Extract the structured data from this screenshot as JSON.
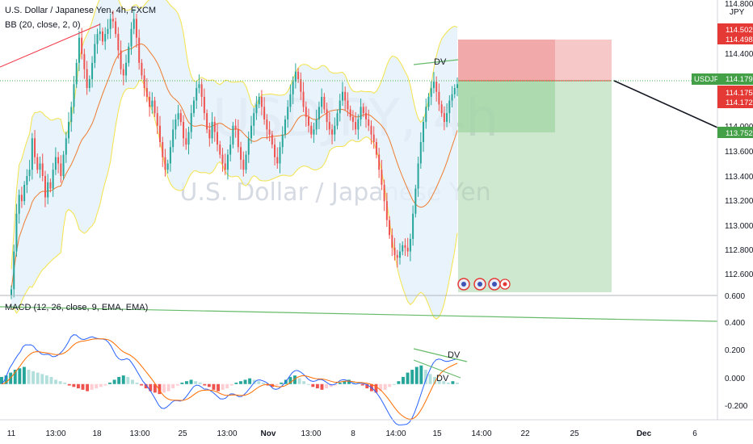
{
  "header": {
    "title": "U.S. Dollar / Japanese Yen, 4h, FXCM",
    "bb_indicator": "BB (20, close, 2, 0)",
    "macd_indicator": "MACD (12, 26, close, 9, EMA, EMA)"
  },
  "watermark": {
    "symbol": "USDJPY, 4h",
    "name": "U.S. Dollar / Japanese Yen"
  },
  "price_axis": {
    "currency": "JPY",
    "ticks": [
      "114.800",
      "114.400",
      "114.000",
      "113.800",
      "113.600",
      "113.400",
      "113.200",
      "113.000",
      "112.800",
      "112.600"
    ],
    "tags": {
      "target_top": "114.502",
      "target_bottom": "114.498",
      "symbol": "USDJPY",
      "last_price": "114.179",
      "stop_top": "114.175",
      "stop_bottom": "114.172",
      "line_end": "113.752"
    }
  },
  "macd_axis": {
    "ticks": [
      "0.600",
      "0.400",
      "0.200",
      "0.000",
      "-0.200"
    ]
  },
  "time_axis": {
    "labels": [
      "11",
      "13:00",
      "18",
      "13:00",
      "25",
      "13:00",
      "Nov",
      "13:00",
      "8",
      "14:00",
      "15",
      "14:00",
      "22",
      "25",
      "Dec",
      "6"
    ]
  },
  "annotations": {
    "price_divergence": "DV",
    "macd_divergence_top": "DV",
    "macd_divergence_bottom": "DV"
  },
  "colors": {
    "bull": "#26a69a",
    "bear": "#ef5350",
    "bb_band": "#f4e34a",
    "bb_basis": "#ee7b30",
    "bb_fill": "#e3f0fb",
    "macd_line": "#2962ff",
    "signal_line": "#ff6d00",
    "trendline_green": "#66bb6a",
    "trendline_red": "#f23645",
    "short_profit": "#a5d6a7",
    "short_stop": "#ef9a9a",
    "label_green": "#4caf50",
    "label_red": "#e53935"
  },
  "chart_data": [
    {
      "type": "candlestick",
      "symbol": "USDJPY",
      "timeframe": "4h",
      "ylim": [
        112.5,
        114.85
      ],
      "bollinger": {
        "period": 20,
        "source": "close",
        "stddev": 2
      },
      "close_series": [
        112.55,
        112.85,
        113.15,
        113.3,
        113.25,
        113.38,
        113.45,
        113.5,
        113.75,
        113.6,
        113.5,
        113.55,
        113.45,
        113.28,
        113.4,
        113.35,
        113.5,
        113.6,
        113.55,
        113.45,
        113.62,
        113.75,
        113.88,
        114.0,
        114.18,
        114.35,
        114.55,
        114.42,
        114.3,
        114.15,
        114.22,
        114.35,
        114.5,
        114.58,
        114.6,
        114.52,
        114.58,
        114.62,
        114.7,
        114.68,
        114.58,
        114.45,
        114.3,
        114.25,
        114.35,
        114.48,
        114.62,
        114.7,
        114.55,
        114.35,
        114.25,
        114.15,
        114.08,
        114.0,
        114.05,
        113.95,
        113.85,
        113.72,
        113.6,
        113.5,
        113.55,
        113.68,
        113.82,
        113.9,
        113.95,
        113.88,
        113.75,
        113.7,
        113.8,
        113.95,
        114.05,
        114.15,
        114.18,
        114.08,
        113.95,
        113.82,
        113.75,
        113.88,
        113.8,
        113.7,
        113.62,
        113.55,
        113.5,
        113.62,
        113.7,
        113.85,
        113.82,
        113.68,
        113.58,
        113.5,
        113.62,
        113.75,
        113.85,
        113.95,
        114.02,
        114.08,
        114.0,
        113.9,
        113.82,
        113.78,
        113.7,
        113.6,
        113.55,
        113.68,
        113.78,
        113.9,
        114.0,
        114.1,
        114.2,
        114.28,
        114.22,
        114.12,
        114.0,
        113.92,
        113.85,
        113.78,
        113.82,
        113.9,
        114.0,
        114.08,
        113.98,
        113.88,
        113.82,
        113.78,
        113.85,
        113.95,
        114.05,
        114.12,
        114.05,
        113.98,
        113.92,
        113.88,
        113.82,
        113.9,
        114.0,
        113.95,
        113.9,
        113.85,
        113.78,
        113.72,
        113.62,
        113.5,
        113.38,
        113.25,
        113.1,
        112.98,
        112.88,
        112.82,
        112.8,
        112.85,
        112.9,
        112.88,
        112.85,
        112.95,
        113.15,
        113.35,
        113.55,
        113.72,
        113.88,
        114.0,
        114.08,
        114.15,
        114.2,
        114.12,
        114.02,
        113.95,
        113.88,
        113.95,
        114.05,
        114.1,
        114.15,
        114.18
      ]
    },
    {
      "type": "bar",
      "indicator": "MACD histogram",
      "ylim": [
        -0.25,
        0.62
      ],
      "series": [
        {
          "values": [
            0.05,
            0.06,
            0.08,
            0.1,
            0.11,
            0.12,
            0.1,
            0.09,
            0.08,
            0.07,
            0.06,
            0.05,
            0.03,
            0.02,
            0.01,
            -0.01,
            -0.02,
            -0.03,
            -0.04,
            -0.05,
            -0.04,
            -0.03,
            -0.02,
            -0.01,
            0.01,
            0.03,
            0.05,
            0.06,
            0.05,
            0.03,
            0.01,
            -0.01,
            -0.03,
            -0.05,
            -0.06,
            -0.07,
            -0.06,
            -0.05,
            -0.03,
            -0.01,
            0.01,
            0.02,
            0.03,
            0.02,
            0.01,
            -0.01,
            -0.02,
            -0.04,
            -0.05,
            -0.04,
            -0.03,
            -0.01,
            0.01,
            0.02,
            0.03,
            0.04,
            0.03,
            0.02,
            0.01,
            -0.01,
            -0.02,
            -0.01,
            0.01,
            0.03,
            0.05,
            0.06,
            0.04,
            0.02,
            0.0,
            -0.02,
            -0.03,
            -0.04,
            -0.03,
            -0.02,
            -0.01,
            0.01,
            0.02,
            0.03,
            0.02,
            0.01,
            -0.01,
            -0.03,
            -0.05,
            -0.06,
            -0.05,
            -0.04,
            -0.02,
            0.0,
            0.02,
            0.05,
            0.08,
            0.1,
            0.12,
            0.13,
            0.1,
            0.07,
            0.05,
            0.03,
            0.02,
            0.01,
            0.02,
            0.01
          ]
        }
      ]
    }
  ]
}
